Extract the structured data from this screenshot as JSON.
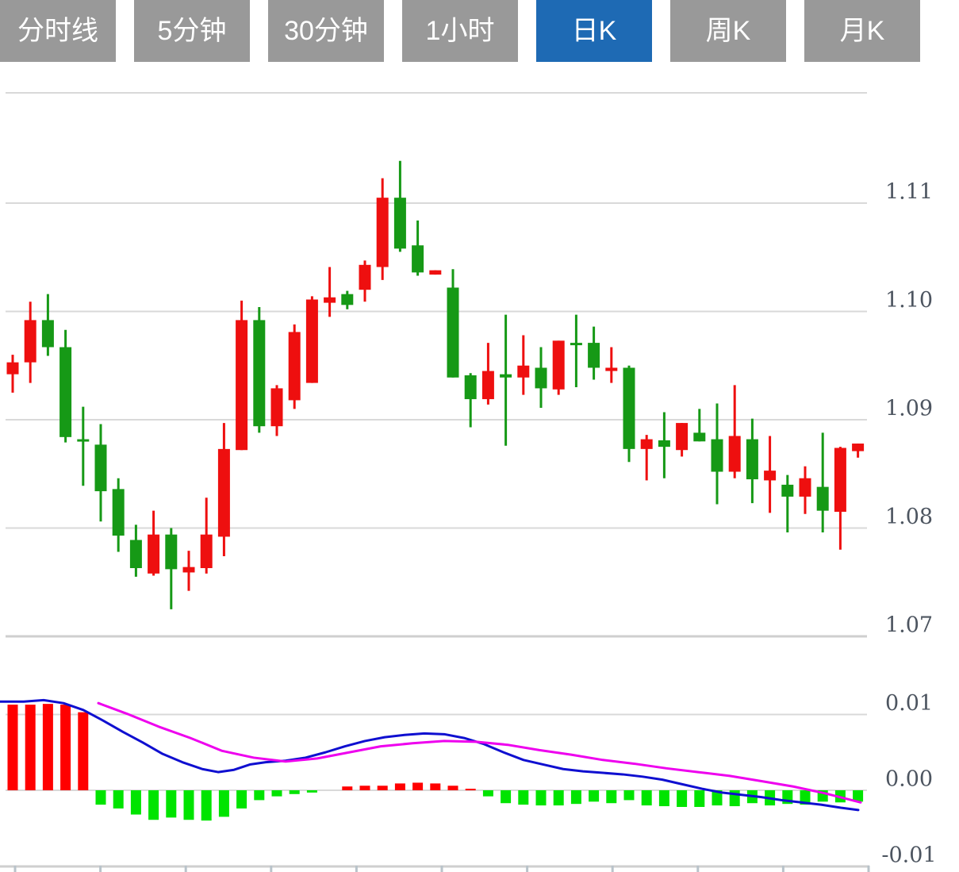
{
  "tabbar": {
    "tabs": [
      {
        "label": "分时线",
        "active": false
      },
      {
        "label": "5分钟",
        "active": false
      },
      {
        "label": "30分钟",
        "active": false
      },
      {
        "label": "1小时",
        "active": false
      },
      {
        "label": "日K",
        "active": true
      },
      {
        "label": "周K",
        "active": false
      },
      {
        "label": "月K",
        "active": false
      }
    ]
  },
  "colors": {
    "candle_up": "#ee0f0f",
    "candle_down": "#169916",
    "hist_up": "#ff0000",
    "hist_down": "#00e400",
    "dif_line": "#0f0fd0",
    "dea_line": "#ee00ee",
    "grid": "#d9d9d9",
    "separator": "#cfcfcf",
    "bottom_tick": "#b9c3ca",
    "axis_text": "#4d5560",
    "tab_bg": "#999999",
    "tab_active_bg": "#1e6ab4",
    "tab_text": "#ffffff"
  },
  "chart_data": {
    "type": "candlestick",
    "title": "",
    "price_panel": {
      "axis_labels": [
        "1.11",
        "1.10",
        "1.09",
        "1.08",
        "1.07"
      ],
      "axis_values": [
        1.11,
        1.1,
        1.09,
        1.08,
        1.07
      ],
      "ylim": [
        1.068,
        1.1202
      ],
      "grid": true,
      "candles": [
        {
          "o": 1.0942,
          "h": 1.096,
          "l": 1.0925,
          "c": 1.0953
        },
        {
          "o": 1.0953,
          "h": 1.1009,
          "l": 1.0934,
          "c": 1.0992
        },
        {
          "o": 1.0992,
          "h": 1.1016,
          "l": 1.0959,
          "c": 1.0967
        },
        {
          "o": 1.0967,
          "h": 1.0983,
          "l": 1.0879,
          "c": 1.0884
        },
        {
          "o": 1.0882,
          "h": 1.0912,
          "l": 1.0839,
          "c": 1.088
        },
        {
          "o": 1.0877,
          "h": 1.0896,
          "l": 1.0806,
          "c": 1.0834
        },
        {
          "o": 1.0836,
          "h": 1.0846,
          "l": 1.0778,
          "c": 1.0793
        },
        {
          "o": 1.0789,
          "h": 1.0803,
          "l": 1.0755,
          "c": 1.0763
        },
        {
          "o": 1.0758,
          "h": 1.0816,
          "l": 1.0756,
          "c": 1.0794
        },
        {
          "o": 1.0794,
          "h": 1.08,
          "l": 1.0725,
          "c": 1.0762
        },
        {
          "o": 1.0759,
          "h": 1.0779,
          "l": 1.0742,
          "c": 1.0764
        },
        {
          "o": 1.0763,
          "h": 1.0828,
          "l": 1.0758,
          "c": 1.0794
        },
        {
          "o": 1.0792,
          "h": 1.0897,
          "l": 1.0774,
          "c": 1.0873
        },
        {
          "o": 1.0872,
          "h": 1.101,
          "l": 1.0872,
          "c": 1.0992
        },
        {
          "o": 1.0992,
          "h": 1.1004,
          "l": 1.0888,
          "c": 1.0894
        },
        {
          "o": 1.0894,
          "h": 1.0932,
          "l": 1.0885,
          "c": 1.0929
        },
        {
          "o": 1.0918,
          "h": 1.0988,
          "l": 1.091,
          "c": 1.0981
        },
        {
          "o": 1.0934,
          "h": 1.1014,
          "l": 1.0934,
          "c": 1.1011
        },
        {
          "o": 1.1008,
          "h": 1.1041,
          "l": 1.0995,
          "c": 1.1013
        },
        {
          "o": 1.1016,
          "h": 1.1019,
          "l": 1.1002,
          "c": 1.1006
        },
        {
          "o": 1.102,
          "h": 1.1047,
          "l": 1.1009,
          "c": 1.1043
        },
        {
          "o": 1.1041,
          "h": 1.1123,
          "l": 1.1029,
          "c": 1.1105
        },
        {
          "o": 1.1105,
          "h": 1.1139,
          "l": 1.1055,
          "c": 1.1058
        },
        {
          "o": 1.1061,
          "h": 1.1084,
          "l": 1.1033,
          "c": 1.1036
        },
        {
          "o": 1.1034,
          "h": 1.1038,
          "l": 1.1034,
          "c": 1.1038
        },
        {
          "o": 1.1022,
          "h": 1.1039,
          "l": 1.0939,
          "c": 1.0939
        },
        {
          "o": 1.0941,
          "h": 1.0943,
          "l": 1.0893,
          "c": 1.0919
        },
        {
          "o": 1.0919,
          "h": 1.0971,
          "l": 1.0914,
          "c": 1.0945
        },
        {
          "o": 1.0942,
          "h": 1.0997,
          "l": 1.0876,
          "c": 1.0939
        },
        {
          "o": 1.0939,
          "h": 1.0978,
          "l": 1.0923,
          "c": 1.095
        },
        {
          "o": 1.0948,
          "h": 1.0967,
          "l": 1.0911,
          "c": 1.0929
        },
        {
          "o": 1.0928,
          "h": 1.0973,
          "l": 1.0923,
          "c": 1.0973
        },
        {
          "o": 1.0971,
          "h": 1.0997,
          "l": 1.093,
          "c": 1.097
        },
        {
          "o": 1.0971,
          "h": 1.0986,
          "l": 1.0937,
          "c": 1.0948
        },
        {
          "o": 1.0945,
          "h": 1.0967,
          "l": 1.0934,
          "c": 1.0948
        },
        {
          "o": 1.0948,
          "h": 1.095,
          "l": 1.0861,
          "c": 1.0873
        },
        {
          "o": 1.0873,
          "h": 1.0886,
          "l": 1.0844,
          "c": 1.0882
        },
        {
          "o": 1.0881,
          "h": 1.0907,
          "l": 1.0846,
          "c": 1.0875
        },
        {
          "o": 1.0872,
          "h": 1.0897,
          "l": 1.0866,
          "c": 1.0897
        },
        {
          "o": 1.0888,
          "h": 1.091,
          "l": 1.088,
          "c": 1.088
        },
        {
          "o": 1.0882,
          "h": 1.0915,
          "l": 1.0822,
          "c": 1.0852
        },
        {
          "o": 1.0852,
          "h": 1.0932,
          "l": 1.0846,
          "c": 1.0885
        },
        {
          "o": 1.0882,
          "h": 1.0901,
          "l": 1.0823,
          "c": 1.0845
        },
        {
          "o": 1.0844,
          "h": 1.0885,
          "l": 1.0814,
          "c": 1.0853
        },
        {
          "o": 1.084,
          "h": 1.0849,
          "l": 1.0796,
          "c": 1.0829
        },
        {
          "o": 1.0829,
          "h": 1.0857,
          "l": 1.0813,
          "c": 1.0846
        },
        {
          "o": 1.0838,
          "h": 1.0888,
          "l": 1.0796,
          "c": 1.0816
        },
        {
          "o": 1.0815,
          "h": 1.0875,
          "l": 1.078,
          "c": 1.0874
        },
        {
          "o": 1.0871,
          "h": 1.0878,
          "l": 1.0865,
          "c": 1.0878
        }
      ]
    },
    "macd_panel": {
      "axis_labels": [
        "0.01",
        "0.00",
        "-0.01"
      ],
      "axis_values": [
        0.01,
        0.0,
        -0.01
      ],
      "ylim": [
        -0.0101,
        0.01
      ],
      "grid": true,
      "histogram": [
        0.0113,
        0.0113,
        0.0114,
        0.0113,
        0.0103,
        -0.0019,
        -0.0024,
        -0.0032,
        -0.0039,
        -0.0036,
        -0.0039,
        -0.004,
        -0.0035,
        -0.0024,
        -0.0013,
        -0.0008,
        -0.0005,
        -0.0003,
        0.0,
        0.0005,
        0.0006,
        0.0006,
        0.0009,
        0.001,
        0.0009,
        0.0006,
        0.0002,
        -0.0008,
        -0.0017,
        -0.0019,
        -0.002,
        -0.002,
        -0.0018,
        -0.0015,
        -0.0017,
        -0.0013,
        -0.002,
        -0.0021,
        -0.0022,
        -0.0022,
        -0.002,
        -0.0021,
        -0.0017,
        -0.002,
        -0.0018,
        -0.0019,
        -0.0015,
        -0.0016,
        -0.0015
      ],
      "dif_line": [
        [
          0,
          0.0117
        ],
        [
          30,
          0.0117
        ],
        [
          55,
          0.0119
        ],
        [
          80,
          0.0115
        ],
        [
          105,
          0.0106
        ],
        [
          130,
          0.0092
        ],
        [
          155,
          0.0077
        ],
        [
          180,
          0.0063
        ],
        [
          205,
          0.0048
        ],
        [
          230,
          0.0037
        ],
        [
          255,
          0.0028
        ],
        [
          275,
          0.0024
        ],
        [
          295,
          0.0027
        ],
        [
          315,
          0.0034
        ],
        [
          335,
          0.0037
        ],
        [
          360,
          0.0039
        ],
        [
          385,
          0.0043
        ],
        [
          410,
          0.005
        ],
        [
          435,
          0.0058
        ],
        [
          460,
          0.0065
        ],
        [
          485,
          0.007
        ],
        [
          510,
          0.0073
        ],
        [
          535,
          0.0075
        ],
        [
          560,
          0.0074
        ],
        [
          585,
          0.0069
        ],
        [
          610,
          0.0061
        ],
        [
          635,
          0.005
        ],
        [
          660,
          0.004
        ],
        [
          685,
          0.0034
        ],
        [
          710,
          0.0028
        ],
        [
          735,
          0.0025
        ],
        [
          760,
          0.0023
        ],
        [
          785,
          0.0021
        ],
        [
          810,
          0.0018
        ],
        [
          835,
          0.0014
        ],
        [
          860,
          0.0008
        ],
        [
          885,
          0.0002
        ],
        [
          910,
          -0.0003
        ],
        [
          935,
          -0.0006
        ],
        [
          960,
          -0.0009
        ],
        [
          985,
          -0.0013
        ],
        [
          1010,
          -0.0016
        ],
        [
          1035,
          -0.0019
        ],
        [
          1060,
          -0.0023
        ],
        [
          1082,
          -0.0026
        ]
      ],
      "dea_line": [
        [
          124,
          0.0115
        ],
        [
          160,
          0.0101
        ],
        [
          200,
          0.0084
        ],
        [
          240,
          0.0069
        ],
        [
          280,
          0.0052
        ],
        [
          320,
          0.0043
        ],
        [
          360,
          0.0038
        ],
        [
          400,
          0.0042
        ],
        [
          440,
          0.005
        ],
        [
          480,
          0.0058
        ],
        [
          520,
          0.0062
        ],
        [
          560,
          0.0065
        ],
        [
          600,
          0.0064
        ],
        [
          640,
          0.006
        ],
        [
          680,
          0.0053
        ],
        [
          720,
          0.0047
        ],
        [
          760,
          0.004
        ],
        [
          800,
          0.0035
        ],
        [
          840,
          0.0029
        ],
        [
          880,
          0.0024
        ],
        [
          920,
          0.0019
        ],
        [
          960,
          0.0012
        ],
        [
          1000,
          0.0005
        ],
        [
          1040,
          -0.0004
        ],
        [
          1085,
          -0.0016
        ]
      ]
    }
  }
}
